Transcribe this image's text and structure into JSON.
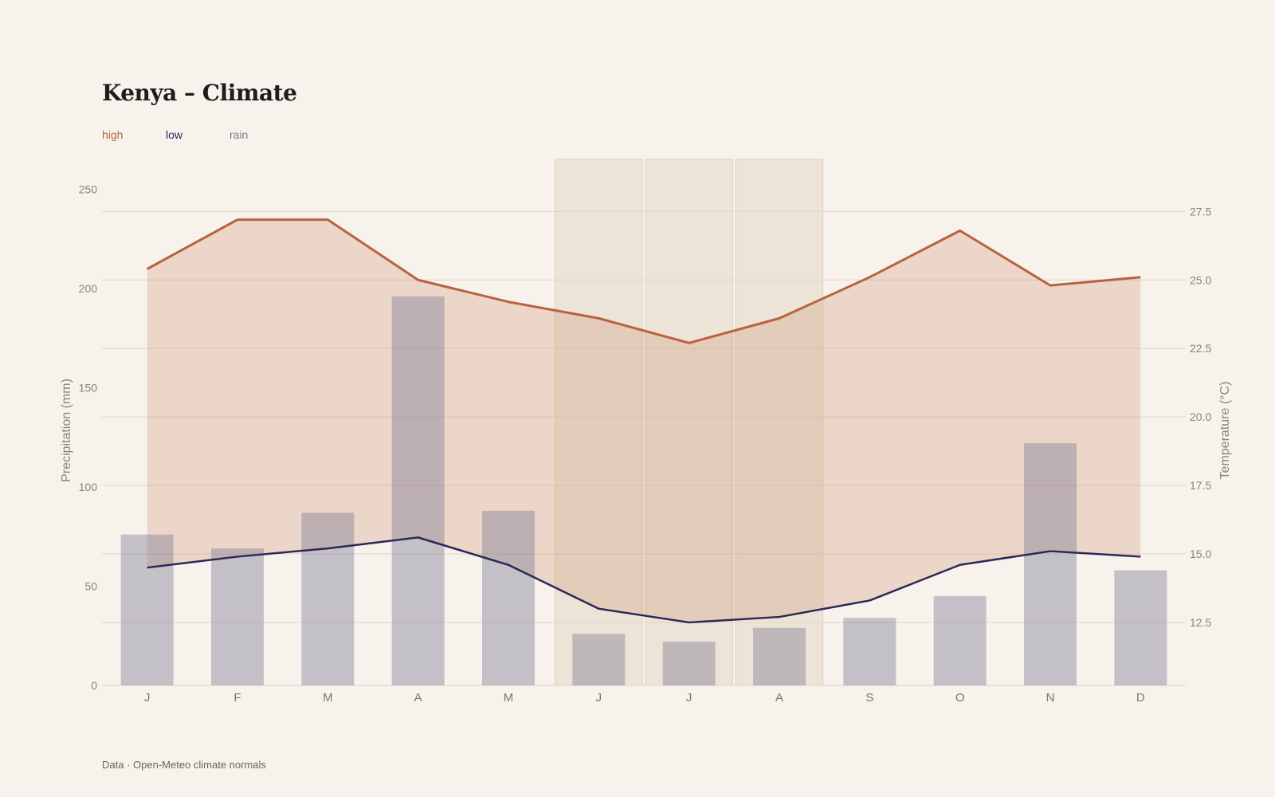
{
  "title": "Kenya – Climate",
  "legend": [
    {
      "label": "high",
      "color": "#b9623f"
    },
    {
      "label": "low",
      "color": "#2b2858"
    },
    {
      "label": "rain",
      "color": "#7e7b94"
    }
  ],
  "footer": "Data · Open-Meteo climate normals",
  "chart_data": {
    "type": "bar+line",
    "categories": [
      "J",
      "F",
      "M",
      "A",
      "M",
      "J",
      "J",
      "A",
      "S",
      "O",
      "N",
      "D"
    ],
    "highlighted_months": [
      5,
      6,
      7
    ],
    "series": [
      {
        "name": "rain",
        "type": "bar",
        "axis": "left",
        "color": "#7e7b94",
        "values": [
          76,
          69,
          87,
          196,
          88,
          26,
          22,
          29,
          34,
          45,
          122,
          58
        ]
      },
      {
        "name": "high",
        "type": "line",
        "axis": "right",
        "color": "#b9623f",
        "values": [
          25.4,
          27.2,
          27.2,
          25.0,
          24.2,
          23.6,
          22.7,
          23.6,
          25.1,
          26.8,
          24.8,
          25.1
        ]
      },
      {
        "name": "low",
        "type": "line",
        "axis": "right",
        "color": "#2b2858",
        "values": [
          14.5,
          14.9,
          15.2,
          15.6,
          14.6,
          13.0,
          12.5,
          12.7,
          13.3,
          14.6,
          15.1,
          14.9
        ]
      }
    ],
    "ylabel_left": "Precipitation (mm)",
    "ylabel_right": "Temperature (°C)",
    "ylim_left": [
      0,
      265
    ],
    "ylim_right": [
      10.2,
      29.4
    ],
    "yticks_left": [
      "0",
      "50",
      "100",
      "150",
      "200",
      "250"
    ],
    "yticks_right": [
      "12.5",
      "15.0",
      "17.5",
      "20.0",
      "22.5",
      "25.0",
      "27.5"
    ],
    "grid": true,
    "legend_position": "top-left"
  }
}
